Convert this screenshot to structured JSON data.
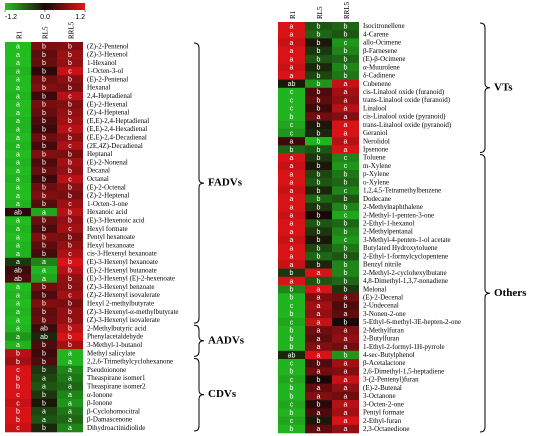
{
  "chart_data": [
    {
      "type": "heatmap",
      "x": [
        "R1",
        "RL5",
        "RRL5"
      ],
      "colorscale": {
        "lim": [
          -1.2,
          1.2
        ],
        "ticks": [
          -1.2,
          {
            "value": 0,
            "label": "0.0"
          },
          1.2
        ],
        "colors": [
          "#22c422",
          "#1a0808",
          "#e8141a"
        ]
      },
      "categories": [
        "(Z)-2-Pentenol",
        "(Z)-3-Hexenol",
        "1-Hexanol",
        "1-Octen-3-ol",
        "(E)-2-Pentenal",
        "Hexanal",
        "2,4-Heptadienal",
        "(E)-2-Hexenal",
        "(Z)-4-Heptenal",
        "(E,E)-2,4-Heptadienal",
        "(E,E)-2,4-Hexadienal",
        "(E,E)-2,4-Decadienal",
        "(2E,4Z)-Decadienal",
        "Heptanal",
        "(E)-2-Nonenal",
        "Decanal",
        "Octanal",
        "(E)-2-Octenal",
        "(Z)-2-Heptenal",
        "1-Octen-3-one",
        "Hexanoic acid",
        "(E)-3-Hexenoic acid",
        "Hexyl formate",
        "Pentyl hexanoate",
        "Hexyl hexanoate",
        "cis-3-Hexenyl hexanoate",
        "(E)-3-Hexenyl hexanoate",
        "(E)-2-Hexenyl butanoate",
        "(E)-3-Hexenyl (E)-2-hexenoate",
        "(Z)-3-Hexenyl benzoate",
        "(Z)-2-Hexenyl isovalerate",
        "Hexyl 2-methylbutyrate",
        "(Z)-3-Hexenyl-α-methylbutyrate",
        "(Z)-3-Hexenyl isovalerate",
        "2-Methylbutyric acid",
        "Phenylacetaldehyde",
        "3-Methyl-1-butanol",
        "Methyl salicylate",
        "2,2,6-Trimethylcyclohexanone",
        "Pseudoionone",
        "Theaspirane isomer1",
        "Theaspirane isomer2",
        "α-Ionone",
        "β-Ionone",
        "β-Cyclohomocitral",
        "β-Damascenone",
        "Dihydroactinidiolide"
      ],
      "values": [
        [
          -1.15,
          0.55,
          0.6
        ],
        [
          -1.15,
          0.4,
          0.75
        ],
        [
          -1.15,
          0.45,
          0.7
        ],
        [
          -1.1,
          0.1,
          1.0
        ],
        [
          -1.15,
          0.5,
          0.65
        ],
        [
          -1.15,
          0.6,
          0.55
        ],
        [
          -1.1,
          0.2,
          0.9
        ],
        [
          -1.15,
          0.55,
          0.6
        ],
        [
          -1.15,
          0.45,
          0.7
        ],
        [
          -1.1,
          0.3,
          0.8
        ],
        [
          -1.1,
          0.2,
          0.9
        ],
        [
          -1.15,
          0.5,
          0.65
        ],
        [
          -1.1,
          0.25,
          0.85
        ],
        [
          -1.15,
          0.6,
          0.55
        ],
        [
          -1.1,
          0.3,
          0.8
        ],
        [
          -1.15,
          0.45,
          0.7
        ],
        [
          -1.1,
          0.2,
          0.9
        ],
        [
          -1.15,
          0.5,
          0.65
        ],
        [
          -1.15,
          0.6,
          0.55
        ],
        [
          -1.1,
          0.35,
          0.75
        ],
        [
          0.1,
          -1.0,
          0.9
        ],
        [
          -1.15,
          0.45,
          0.7
        ],
        [
          -1.1,
          0.3,
          0.8
        ],
        [
          -1.15,
          0.6,
          0.55
        ],
        [
          -1.1,
          0.4,
          0.7
        ],
        [
          -1.1,
          0.25,
          0.85
        ],
        [
          -0.3,
          -0.8,
          1.1
        ],
        [
          0.2,
          -1.1,
          0.9
        ],
        [
          0.3,
          -1.0,
          0.7
        ],
        [
          -1.15,
          0.5,
          0.65
        ],
        [
          -1.1,
          0.3,
          0.8
        ],
        [
          -1.15,
          0.6,
          0.55
        ],
        [
          -1.1,
          0.4,
          0.7
        ],
        [
          -1.15,
          0.45,
          0.7
        ],
        [
          -1.1,
          0.2,
          0.9
        ],
        [
          -0.9,
          -0.2,
          1.1
        ],
        [
          -1.1,
          0.3,
          0.8
        ],
        [
          0.9,
          0.2,
          -1.1
        ],
        [
          0.8,
          0.3,
          -1.1
        ],
        [
          1.1,
          -0.3,
          -0.8
        ],
        [
          1.1,
          -0.4,
          -0.7
        ],
        [
          1.1,
          -0.5,
          -0.6
        ],
        [
          1.1,
          -0.3,
          -0.8
        ],
        [
          1.0,
          -0.1,
          -0.9
        ],
        [
          1.1,
          -0.4,
          -0.7
        ],
        [
          1.1,
          -0.5,
          -0.6
        ],
        [
          1.0,
          -0.2,
          -0.8
        ]
      ],
      "cell_labels": [
        [
          "a",
          "b",
          "b"
        ],
        [
          "a",
          "b",
          "b"
        ],
        [
          "a",
          "b",
          "b"
        ],
        [
          "a",
          "b",
          "c"
        ],
        [
          "a",
          "b",
          "b"
        ],
        [
          "a",
          "b",
          "b"
        ],
        [
          "a",
          "b",
          "c"
        ],
        [
          "a",
          "b",
          "b"
        ],
        [
          "a",
          "b",
          "b"
        ],
        [
          "a",
          "b",
          "b"
        ],
        [
          "a",
          "b",
          "c"
        ],
        [
          "a",
          "b",
          "b"
        ],
        [
          "a",
          "b",
          "c"
        ],
        [
          "a",
          "b",
          "b"
        ],
        [
          "a",
          "b",
          "b"
        ],
        [
          "a",
          "b",
          "b"
        ],
        [
          "a",
          "b",
          "c"
        ],
        [
          "a",
          "b",
          "b"
        ],
        [
          "a",
          "b",
          "b"
        ],
        [
          "a",
          "b",
          "c"
        ],
        [
          "ab",
          "a",
          "b"
        ],
        [
          "a",
          "b",
          "b"
        ],
        [
          "a",
          "b",
          "c"
        ],
        [
          "a",
          "b",
          "b"
        ],
        [
          "a",
          "b",
          "b"
        ],
        [
          "a",
          "b",
          "c"
        ],
        [
          "a",
          "a",
          "b"
        ],
        [
          "ab",
          "a",
          "b"
        ],
        [
          "ab",
          "a",
          "b"
        ],
        [
          "a",
          "b",
          "b"
        ],
        [
          "a",
          "b",
          "c"
        ],
        [
          "a",
          "b",
          "b"
        ],
        [
          "a",
          "b",
          "b"
        ],
        [
          "a",
          "b",
          "b"
        ],
        [
          "a",
          "ab",
          "b"
        ],
        [
          "a",
          "ab",
          "b"
        ],
        [
          "a",
          "b",
          "b"
        ],
        [
          "b",
          "b",
          "a"
        ],
        [
          "b",
          "b",
          "a"
        ],
        [
          "c",
          "b",
          "a"
        ],
        [
          "b",
          "a",
          "a"
        ],
        [
          "b",
          "a",
          "a"
        ],
        [
          "c",
          "b",
          "a"
        ],
        [
          "c",
          "b",
          "a"
        ],
        [
          "b",
          "a",
          "a"
        ],
        [
          "b",
          "a",
          "a"
        ],
        [
          "c",
          "b",
          "a"
        ]
      ],
      "groups": [
        {
          "label": "FADVs",
          "rows": [
            0,
            33
          ]
        },
        {
          "label": "AADVs",
          "rows": [
            34,
            37
          ]
        },
        {
          "label": "CDVs",
          "rows": [
            38,
            46
          ]
        }
      ]
    },
    {
      "type": "heatmap",
      "x": [
        "R1",
        "RL5",
        "RRL5"
      ],
      "categories": [
        "Isocitronellene",
        "4-Carene",
        "allo-Ocimene",
        "β-Farnesene",
        "(E)-β-Ocimene",
        "α-Muurolene",
        "δ-Cadinene",
        "Cubenene",
        "cis-Linalool oxide (furanoid)",
        "trans-Linalool oxide (furanoid)",
        "Linalool",
        "cis-Linalool oxide (pyranoid)",
        "trans-Linalool oxide (pyranoid)",
        "Geraniol",
        "Nerolidol",
        "Ipsenone",
        "Toluene",
        "m-Xylene",
        "p-Xylene",
        "o-Xylene",
        "1,2,4,5-Tetramethylbenzene",
        "Dodecane",
        "2-Methylnaphthalene",
        "2-Methyl-1-penten-3-one",
        "2-Ethyl-1-hexanol",
        "2-Methylpentanal",
        "3-Methyl-4-penten-1-ol acetate",
        "Butylated Hydroxytoluene",
        "2-Ethyl-1-formylcyclopentene",
        "Benzyl nitrile",
        "2-Methyl-2-cyclohexylbutane",
        "4,8-Dimethyl-1,3,7-nonadiene",
        "Melonal",
        "(E)-2-Decenal",
        "2-Undecenal",
        "3-Nonen-2-one",
        "5-Ethyl-6-methyl-3E-hepten-2-one",
        "2-Methylfuran",
        "2-Butylfuran",
        "1-Ethyl-2-formyl-1H-pyrrole",
        "4-sec-Butylphenol",
        "β-Acetalactone",
        "2,6-Dimethyl-1,5-heptadiene",
        "3-(2-Pentenyl)furan",
        "(E)-2-Butenal",
        "3-Octanone",
        "3-Octen-2-one",
        "Pentyl formate",
        "2-Ethyl-furan",
        "2,3-Octanedione"
      ],
      "values": [
        [
          1.1,
          -0.5,
          -0.6
        ],
        [
          1.1,
          -0.6,
          -0.5
        ],
        [
          1.0,
          -0.1,
          -0.9
        ],
        [
          1.1,
          -0.3,
          -0.8
        ],
        [
          1.1,
          -0.5,
          -0.6
        ],
        [
          1.0,
          -0.2,
          -0.8
        ],
        [
          1.1,
          -0.4,
          -0.7
        ],
        [
          -0.1,
          -0.9,
          1.0
        ],
        [
          -1.1,
          0.3,
          0.8
        ],
        [
          -1.1,
          0.4,
          0.7
        ],
        [
          -1.1,
          0.2,
          0.9
        ],
        [
          -1.1,
          0.5,
          0.6
        ],
        [
          -1.0,
          -0.1,
          1.1
        ],
        [
          -0.9,
          -0.2,
          1.1
        ],
        [
          0.2,
          -1.1,
          0.9
        ],
        [
          -0.6,
          -0.5,
          1.1
        ],
        [
          1.1,
          -0.3,
          -0.8
        ],
        [
          1.0,
          -0.1,
          -0.9
        ],
        [
          1.1,
          -0.4,
          -0.7
        ],
        [
          1.1,
          -0.5,
          -0.6
        ],
        [
          1.0,
          -0.2,
          -0.8
        ],
        [
          1.1,
          -0.6,
          -0.5
        ],
        [
          1.1,
          -0.3,
          -0.8
        ],
        [
          1.0,
          0.0,
          -1.0
        ],
        [
          1.1,
          -0.5,
          -0.6
        ],
        [
          1.1,
          -0.3,
          -0.8
        ],
        [
          1.0,
          -0.1,
          -0.9
        ],
        [
          1.1,
          -0.4,
          -0.7
        ],
        [
          1.1,
          -0.6,
          -0.5
        ],
        [
          1.0,
          -0.2,
          -0.8
        ],
        [
          -0.3,
          1.1,
          -0.8
        ],
        [
          1.1,
          -0.5,
          -0.6
        ],
        [
          -0.8,
          1.1,
          -0.3
        ],
        [
          -1.1,
          0.6,
          0.5
        ],
        [
          -1.1,
          0.8,
          0.3
        ],
        [
          -1.1,
          0.7,
          0.4
        ],
        [
          -1.0,
          1.0,
          0.0
        ],
        [
          -1.1,
          0.5,
          0.6
        ],
        [
          -1.1,
          0.4,
          0.7
        ],
        [
          -1.1,
          0.6,
          0.5
        ],
        [
          -0.2,
          1.1,
          -0.9
        ],
        [
          -1.1,
          0.3,
          0.8
        ],
        [
          -1.1,
          0.5,
          0.6
        ],
        [
          -1.0,
          0.0,
          1.0
        ],
        [
          -1.1,
          0.4,
          0.7
        ],
        [
          -1.1,
          0.6,
          0.5
        ],
        [
          -1.0,
          0.1,
          0.9
        ],
        [
          -1.1,
          0.3,
          0.8
        ],
        [
          -1.0,
          -0.1,
          1.1
        ],
        [
          -1.1,
          0.4,
          0.7
        ]
      ],
      "cell_labels": [
        [
          "a",
          "b",
          "b"
        ],
        [
          "a",
          "b",
          "b"
        ],
        [
          "a",
          "b",
          "c"
        ],
        [
          "a",
          "b",
          "b"
        ],
        [
          "a",
          "b",
          "b"
        ],
        [
          "a",
          "b",
          "b"
        ],
        [
          "a",
          "b",
          "b"
        ],
        [
          "ab",
          "b",
          "a"
        ],
        [
          "c",
          "b",
          "a"
        ],
        [
          "c",
          "b",
          "a"
        ],
        [
          "c",
          "b",
          "a"
        ],
        [
          "b",
          "a",
          "a"
        ],
        [
          "c",
          "b",
          "a"
        ],
        [
          "c",
          "b",
          "a"
        ],
        [
          "a",
          "b",
          "a"
        ],
        [
          "b",
          "b",
          "a"
        ],
        [
          "a",
          "b",
          "c"
        ],
        [
          "a",
          "b",
          "c"
        ],
        [
          "a",
          "b",
          "b"
        ],
        [
          "a",
          "b",
          "b"
        ],
        [
          "a",
          "b",
          "c"
        ],
        [
          "a",
          "b",
          "b"
        ],
        [
          "a",
          "b",
          "b"
        ],
        [
          "a",
          "b",
          "c"
        ],
        [
          "a",
          "b",
          "b"
        ],
        [
          "a",
          "b",
          "b"
        ],
        [
          "a",
          "b",
          "c"
        ],
        [
          "a",
          "b",
          "b"
        ],
        [
          "a",
          "b",
          "b"
        ],
        [
          "a",
          "b",
          "b"
        ],
        [
          "b",
          "a",
          "b"
        ],
        [
          "a",
          "b",
          "b"
        ],
        [
          "b",
          "a",
          "b"
        ],
        [
          "b",
          "a",
          "a"
        ],
        [
          "c",
          "a",
          "b"
        ],
        [
          "b",
          "a",
          "a"
        ],
        [
          "c",
          "a",
          "b"
        ],
        [
          "b",
          "a",
          "a"
        ],
        [
          "b",
          "a",
          "a"
        ],
        [
          "b",
          "a",
          "a"
        ],
        [
          "ab",
          "a",
          "b"
        ],
        [
          "c",
          "b",
          "a"
        ],
        [
          "b",
          "a",
          "a"
        ],
        [
          "c",
          "b",
          "a"
        ],
        [
          "b",
          "a",
          "a"
        ],
        [
          "b",
          "a",
          "a"
        ],
        [
          "c",
          "b",
          "a"
        ],
        [
          "b",
          "a",
          "a"
        ],
        [
          "c",
          "b",
          "a"
        ],
        [
          "b",
          "a",
          "a"
        ]
      ],
      "groups": [
        {
          "label": "VTs",
          "rows": [
            0,
            15
          ]
        },
        {
          "label": "Others",
          "rows": [
            16,
            49
          ]
        }
      ]
    }
  ]
}
